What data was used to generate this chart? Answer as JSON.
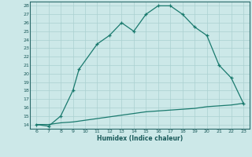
{
  "xlabel": "Humidex (Indice chaleur)",
  "x_upper": [
    6,
    7,
    8,
    9,
    9.5,
    11,
    12,
    13,
    14,
    15,
    16,
    17,
    18,
    19,
    20,
    21,
    22,
    23
  ],
  "y_upper": [
    14,
    13.8,
    15,
    18,
    20.5,
    23.5,
    24.5,
    26,
    25,
    27,
    28,
    28,
    27,
    25.5,
    24.5,
    21,
    19.5,
    16.5
  ],
  "x_lower": [
    6,
    7,
    8,
    9,
    10,
    11,
    12,
    13,
    14,
    15,
    16,
    17,
    18,
    19,
    20,
    21,
    22,
    23
  ],
  "y_lower": [
    14,
    14,
    14.2,
    14.3,
    14.5,
    14.7,
    14.9,
    15.1,
    15.3,
    15.5,
    15.6,
    15.7,
    15.8,
    15.9,
    16.1,
    16.2,
    16.3,
    16.5
  ],
  "line_color": "#1a7a6e",
  "bg_color": "#cce8e8",
  "grid_color": "#aad0d0",
  "text_color": "#1a5a5a",
  "spine_color": "#2a6a6a",
  "xlim": [
    5.5,
    23.5
  ],
  "ylim": [
    13.5,
    28.5
  ],
  "yticks": [
    14,
    15,
    16,
    17,
    18,
    19,
    20,
    21,
    22,
    23,
    24,
    25,
    26,
    27,
    28
  ],
  "xticks": [
    6,
    7,
    8,
    9,
    10,
    11,
    12,
    13,
    14,
    15,
    16,
    17,
    18,
    19,
    20,
    21,
    22,
    23
  ]
}
